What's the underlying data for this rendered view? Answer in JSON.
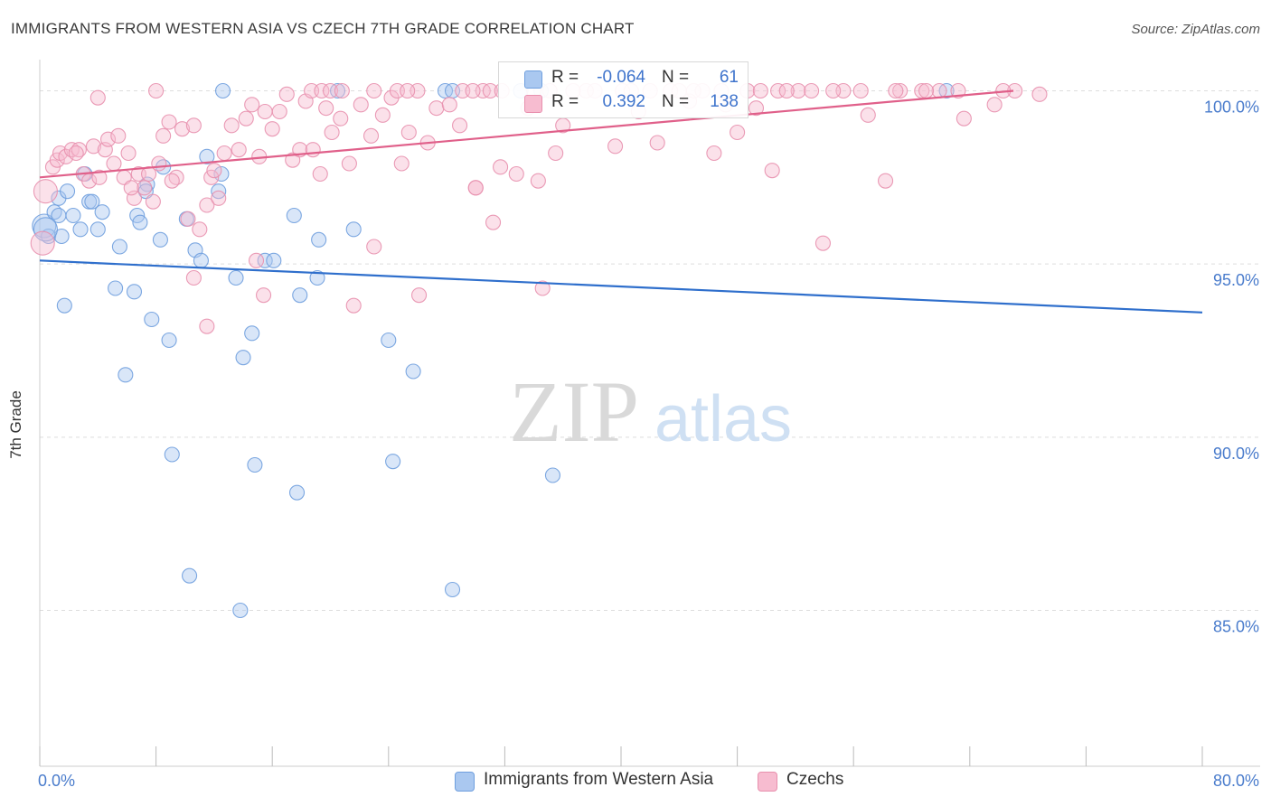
{
  "header": {
    "title": "IMMIGRANTS FROM WESTERN ASIA VS CZECH 7TH GRADE CORRELATION CHART",
    "source": "Source: ZipAtlas.com"
  },
  "watermark": {
    "zip": "ZIP",
    "atlas": "atlas"
  },
  "legend_stats": {
    "r_label": "R =",
    "n_label": "N =",
    "rows": [
      {
        "r": "-0.064",
        "n": "61"
      },
      {
        "r": "0.392",
        "n": "138"
      }
    ]
  },
  "colors": {
    "blue_fill": "#aac8f0",
    "blue_stroke": "#6f9fde",
    "blue_line": "#2f6fcc",
    "pink_fill": "#f7bcd0",
    "pink_stroke": "#e890ae",
    "pink_line": "#e0608a",
    "tick_label": "#4a7ccc",
    "grid": "#dddddd"
  },
  "chart_data": {
    "type": "scatter",
    "title": "IMMIGRANTS FROM WESTERN ASIA VS CZECH 7TH GRADE CORRELATION CHART",
    "xlabel": "",
    "ylabel": "7th Grade",
    "xlim": [
      0,
      80
    ],
    "ylim": [
      80.5,
      100.9
    ],
    "x_tick_labels": [
      {
        "value": 0,
        "label": "0.0%"
      },
      {
        "value": 80,
        "label": "80.0%"
      }
    ],
    "x_minor_ticks": [
      0,
      8,
      16,
      24,
      32,
      40,
      48,
      56,
      64,
      72,
      80
    ],
    "y_ticks": [
      {
        "value": 100,
        "label": "100.0%"
      },
      {
        "value": 95,
        "label": "95.0%"
      },
      {
        "value": 90,
        "label": "90.0%"
      },
      {
        "value": 85,
        "label": "85.0%"
      }
    ],
    "grid": true,
    "legend_position": "bottom",
    "series": [
      {
        "name": "Immigrants from Western Asia",
        "color": "blue",
        "r": -0.064,
        "n": 61,
        "trend": {
          "x": [
            0,
            80
          ],
          "y": [
            95.1,
            93.6
          ]
        },
        "points": [
          [
            0.3,
            96.1
          ],
          [
            0.6,
            95.8
          ],
          [
            1.0,
            96.5
          ],
          [
            1.3,
            96.9
          ],
          [
            1.5,
            95.8
          ],
          [
            1.9,
            97.1
          ],
          [
            2.3,
            96.4
          ],
          [
            2.8,
            96.0
          ],
          [
            3.4,
            96.8
          ],
          [
            3.6,
            96.8
          ],
          [
            4.0,
            96.0
          ],
          [
            4.3,
            96.5
          ],
          [
            5.5,
            95.5
          ],
          [
            6.7,
            96.4
          ],
          [
            6.9,
            96.2
          ],
          [
            7.4,
            97.3
          ],
          [
            8.3,
            95.7
          ],
          [
            8.5,
            97.8
          ],
          [
            10.1,
            96.3
          ],
          [
            10.7,
            95.4
          ],
          [
            11.1,
            95.1
          ],
          [
            11.5,
            98.1
          ],
          [
            12.3,
            97.1
          ],
          [
            12.5,
            97.6
          ],
          [
            12.6,
            100.0
          ],
          [
            13.5,
            94.6
          ],
          [
            14.6,
            93.0
          ],
          [
            15.5,
            95.1
          ],
          [
            16.1,
            95.1
          ],
          [
            17.5,
            96.4
          ],
          [
            17.9,
            94.1
          ],
          [
            19.2,
            95.7
          ],
          [
            19.1,
            94.6
          ],
          [
            20.5,
            100.0
          ],
          [
            21.6,
            96.0
          ],
          [
            24.0,
            92.8
          ],
          [
            25.7,
            91.9
          ],
          [
            27.9,
            100.0
          ],
          [
            28.4,
            100.0
          ],
          [
            33.1,
            100.0
          ],
          [
            34.5,
            100.0
          ],
          [
            62.4,
            100.0
          ],
          [
            1.7,
            93.8
          ],
          [
            5.2,
            94.3
          ],
          [
            6.5,
            94.2
          ],
          [
            7.7,
            93.4
          ],
          [
            8.9,
            92.8
          ],
          [
            5.9,
            91.8
          ],
          [
            9.1,
            89.5
          ],
          [
            14.0,
            92.3
          ],
          [
            14.8,
            89.2
          ],
          [
            17.7,
            88.4
          ],
          [
            24.3,
            89.3
          ],
          [
            35.3,
            88.9
          ],
          [
            10.3,
            86.0
          ],
          [
            13.8,
            85.0
          ],
          [
            28.4,
            85.6
          ],
          [
            3.1,
            97.6
          ],
          [
            7.3,
            97.1
          ],
          [
            0.4,
            96.0
          ],
          [
            1.3,
            96.4
          ]
        ]
      },
      {
        "name": "Czechs",
        "color": "pink",
        "r": 0.392,
        "n": 138,
        "trend": {
          "x": [
            0,
            67
          ],
          "y": [
            97.5,
            100.0
          ]
        },
        "points": [
          [
            0.2,
            95.6
          ],
          [
            0.4,
            97.1
          ],
          [
            0.9,
            97.8
          ],
          [
            1.2,
            98.0
          ],
          [
            1.4,
            98.2
          ],
          [
            1.8,
            98.1
          ],
          [
            2.2,
            98.3
          ],
          [
            2.7,
            98.3
          ],
          [
            3.0,
            97.6
          ],
          [
            3.4,
            97.4
          ],
          [
            3.7,
            98.4
          ],
          [
            4.1,
            97.5
          ],
          [
            4.5,
            98.3
          ],
          [
            4.7,
            98.6
          ],
          [
            5.1,
            97.9
          ],
          [
            5.4,
            98.7
          ],
          [
            5.8,
            97.5
          ],
          [
            6.1,
            98.2
          ],
          [
            6.5,
            96.9
          ],
          [
            6.8,
            97.6
          ],
          [
            7.2,
            97.2
          ],
          [
            7.5,
            97.6
          ],
          [
            7.8,
            96.8
          ],
          [
            8.2,
            97.9
          ],
          [
            8.5,
            98.7
          ],
          [
            8.9,
            99.1
          ],
          [
            9.4,
            97.5
          ],
          [
            9.8,
            98.9
          ],
          [
            10.2,
            96.3
          ],
          [
            10.6,
            99.0
          ],
          [
            11.0,
            96.0
          ],
          [
            11.5,
            96.7
          ],
          [
            11.8,
            97.5
          ],
          [
            12.3,
            96.9
          ],
          [
            12.7,
            98.2
          ],
          [
            13.2,
            99.0
          ],
          [
            13.7,
            98.3
          ],
          [
            14.2,
            99.2
          ],
          [
            14.6,
            99.6
          ],
          [
            15.1,
            98.1
          ],
          [
            15.5,
            99.4
          ],
          [
            16.0,
            98.9
          ],
          [
            16.5,
            99.4
          ],
          [
            17.0,
            99.9
          ],
          [
            17.4,
            98.0
          ],
          [
            17.9,
            98.3
          ],
          [
            18.3,
            99.7
          ],
          [
            18.8,
            98.3
          ],
          [
            19.3,
            97.6
          ],
          [
            19.7,
            99.5
          ],
          [
            20.1,
            98.8
          ],
          [
            20.7,
            99.2
          ],
          [
            21.3,
            97.9
          ],
          [
            22.1,
            99.6
          ],
          [
            22.8,
            98.7
          ],
          [
            23.6,
            99.3
          ],
          [
            24.2,
            99.8
          ],
          [
            24.9,
            97.9
          ],
          [
            25.4,
            98.8
          ],
          [
            26.0,
            100.0
          ],
          [
            26.7,
            98.5
          ],
          [
            27.3,
            99.5
          ],
          [
            28.2,
            99.6
          ],
          [
            28.9,
            99.0
          ],
          [
            30.0,
            97.2
          ],
          [
            30.5,
            100.0
          ],
          [
            31.2,
            96.2
          ],
          [
            31.7,
            97.8
          ],
          [
            32.8,
            97.6
          ],
          [
            33.6,
            99.5
          ],
          [
            34.3,
            97.4
          ],
          [
            35.5,
            98.2
          ],
          [
            36.0,
            99.0
          ],
          [
            37.6,
            100.0
          ],
          [
            39.6,
            98.4
          ],
          [
            41.2,
            99.4
          ],
          [
            42.5,
            98.5
          ],
          [
            43.4,
            100.0
          ],
          [
            44.7,
            99.7
          ],
          [
            45.6,
            100.0
          ],
          [
            46.4,
            98.2
          ],
          [
            47.2,
            99.6
          ],
          [
            48.0,
            98.8
          ],
          [
            49.3,
            99.5
          ],
          [
            50.4,
            97.7
          ],
          [
            50.8,
            100.0
          ],
          [
            52.2,
            100.0
          ],
          [
            53.9,
            95.6
          ],
          [
            55.3,
            100.0
          ],
          [
            57.0,
            99.3
          ],
          [
            58.2,
            97.4
          ],
          [
            59.2,
            100.0
          ],
          [
            60.7,
            100.0
          ],
          [
            61.9,
            100.0
          ],
          [
            63.2,
            100.0
          ],
          [
            63.6,
            99.2
          ],
          [
            65.7,
            99.6
          ],
          [
            67.1,
            100.0
          ],
          [
            68.8,
            99.9
          ],
          [
            10.6,
            94.6
          ],
          [
            11.5,
            93.2
          ],
          [
            14.9,
            95.1
          ],
          [
            15.4,
            94.1
          ],
          [
            21.6,
            93.8
          ],
          [
            23.0,
            95.5
          ],
          [
            26.1,
            94.1
          ],
          [
            30.0,
            97.2
          ],
          [
            34.6,
            94.3
          ],
          [
            4.0,
            99.8
          ],
          [
            8.0,
            100.0
          ],
          [
            18.7,
            100.0
          ],
          [
            19.4,
            100.0
          ],
          [
            20.0,
            100.0
          ],
          [
            20.8,
            100.0
          ],
          [
            23.0,
            100.0
          ],
          [
            24.6,
            100.0
          ],
          [
            25.3,
            100.0
          ],
          [
            29.1,
            100.0
          ],
          [
            29.8,
            100.0
          ],
          [
            31.0,
            100.0
          ],
          [
            31.8,
            100.0
          ],
          [
            34.0,
            100.0
          ],
          [
            35.1,
            100.0
          ],
          [
            36.7,
            100.0
          ],
          [
            38.2,
            100.0
          ],
          [
            40.1,
            100.0
          ],
          [
            40.7,
            100.0
          ],
          [
            42.0,
            100.0
          ],
          [
            44.0,
            100.0
          ],
          [
            45.0,
            100.0
          ],
          [
            46.9,
            100.0
          ],
          [
            48.7,
            100.0
          ],
          [
            49.6,
            100.0
          ],
          [
            51.4,
            100.0
          ],
          [
            53.1,
            100.0
          ],
          [
            54.6,
            100.0
          ],
          [
            56.5,
            100.0
          ],
          [
            58.9,
            100.0
          ],
          [
            61.0,
            100.0
          ],
          [
            66.3,
            100.0
          ],
          [
            2.5,
            98.2
          ],
          [
            6.3,
            97.2
          ],
          [
            9.1,
            97.4
          ],
          [
            12.0,
            97.7
          ]
        ]
      }
    ]
  }
}
